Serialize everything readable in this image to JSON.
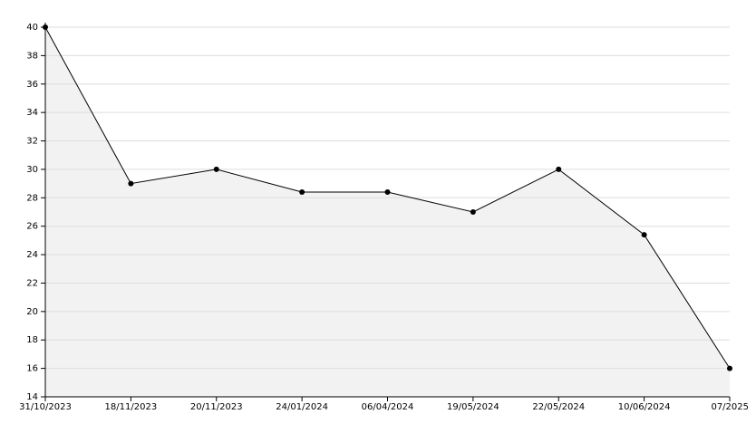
{
  "chart_data": {
    "type": "area",
    "categories": [
      "31/10/2023",
      "18/11/2023",
      "20/11/2023",
      "24/01/2024",
      "06/04/2024",
      "19/05/2024",
      "22/05/2024",
      "10/06/2024",
      "07/2025"
    ],
    "values": [
      40,
      29,
      30,
      28.4,
      28.4,
      27,
      30,
      25.4,
      16
    ],
    "color": "#000000",
    "fill_color": "#f2f2f2",
    "grid_color": "#dddddd",
    "ylim": [
      14,
      40
    ],
    "yticks": [
      14,
      16,
      18,
      20,
      22,
      24,
      26,
      28,
      30,
      32,
      34,
      36,
      38,
      40
    ],
    "grid": true
  }
}
